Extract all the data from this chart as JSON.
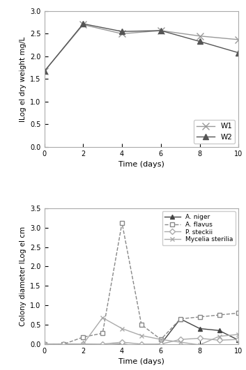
{
  "top": {
    "xlabel": "Time (days)",
    "ylabel": "lLog el dry weight mg/L",
    "xlim": [
      0,
      10
    ],
    "ylim": [
      0,
      3
    ],
    "xticks": [
      0,
      2,
      4,
      6,
      8,
      10
    ],
    "yticks": [
      0,
      0.5,
      1,
      1.5,
      2,
      2.5,
      3
    ],
    "series": [
      {
        "label": "W1",
        "x": [
          0,
          2,
          4,
          6,
          8,
          10
        ],
        "y": [
          1.67,
          2.7,
          2.5,
          2.57,
          2.45,
          2.37
        ],
        "color": "#999999",
        "marker": "x",
        "linestyle": "-",
        "markersize": 7,
        "mfc": "#999999",
        "mec": "#999999",
        "lw": 1.0
      },
      {
        "label": "W2",
        "x": [
          0,
          2,
          4,
          6,
          8,
          10
        ],
        "y": [
          1.67,
          2.72,
          2.55,
          2.57,
          2.33,
          2.08
        ],
        "color": "#555555",
        "marker": "^",
        "linestyle": "-",
        "markersize": 6,
        "mfc": "#555555",
        "mec": "#555555",
        "lw": 1.0
      }
    ],
    "legend_loc": "lower right"
  },
  "bottom": {
    "xlabel": "Time (days)",
    "ylabel": "Colony diameter lLog el cm",
    "xlim": [
      0,
      10
    ],
    "ylim": [
      0,
      3.5
    ],
    "xticks": [
      0,
      2,
      4,
      6,
      8,
      10
    ],
    "yticks": [
      0,
      0.5,
      1,
      1.5,
      2,
      2.5,
      3,
      3.5
    ],
    "series": [
      {
        "label": "A. niger",
        "x": [
          0,
          1,
          2,
          3,
          4,
          5,
          6,
          7,
          8,
          9,
          10
        ],
        "y": [
          0.0,
          0.0,
          0.0,
          -0.02,
          0.0,
          -0.05,
          0.0,
          0.65,
          0.4,
          0.35,
          0.1
        ],
        "color": "#444444",
        "marker": "^",
        "linestyle": "-",
        "markersize": 5,
        "mfc": "#444444",
        "mec": "#444444",
        "lw": 1.0,
        "dashes": []
      },
      {
        "label": "A. flavus",
        "x": [
          0,
          1,
          2,
          3,
          4,
          5,
          6,
          7,
          8,
          9,
          10
        ],
        "y": [
          0.0,
          0.0,
          0.18,
          0.28,
          3.12,
          0.5,
          0.12,
          0.65,
          0.7,
          0.75,
          0.8
        ],
        "color": "#888888",
        "marker": "s",
        "linestyle": "--",
        "markersize": 5,
        "mfc": "white",
        "mec": "#888888",
        "lw": 1.0,
        "dashes": [
          4,
          2
        ]
      },
      {
        "label": "P. steckii",
        "x": [
          0,
          1,
          2,
          3,
          4,
          5,
          6,
          7,
          8,
          9,
          10
        ],
        "y": [
          0.0,
          0.0,
          0.0,
          0.0,
          0.05,
          0.0,
          0.0,
          0.12,
          0.15,
          0.1,
          0.12
        ],
        "color": "#aaaaaa",
        "marker": "D",
        "linestyle": "-",
        "markersize": 4,
        "mfc": "white",
        "mec": "#aaaaaa",
        "lw": 1.0,
        "dashes": []
      },
      {
        "label": "Mycelia sterilia",
        "x": [
          0,
          1,
          2,
          3,
          4,
          5,
          6,
          7,
          8,
          9,
          10
        ],
        "y": [
          0.0,
          -0.03,
          0.0,
          0.68,
          0.4,
          0.22,
          0.12,
          0.05,
          -0.02,
          0.2,
          0.25
        ],
        "color": "#aaaaaa",
        "marker": "x",
        "linestyle": "-",
        "markersize": 5,
        "mfc": "#aaaaaa",
        "mec": "#aaaaaa",
        "lw": 1.0,
        "dashes": []
      }
    ],
    "legend_loc": "upper right"
  }
}
